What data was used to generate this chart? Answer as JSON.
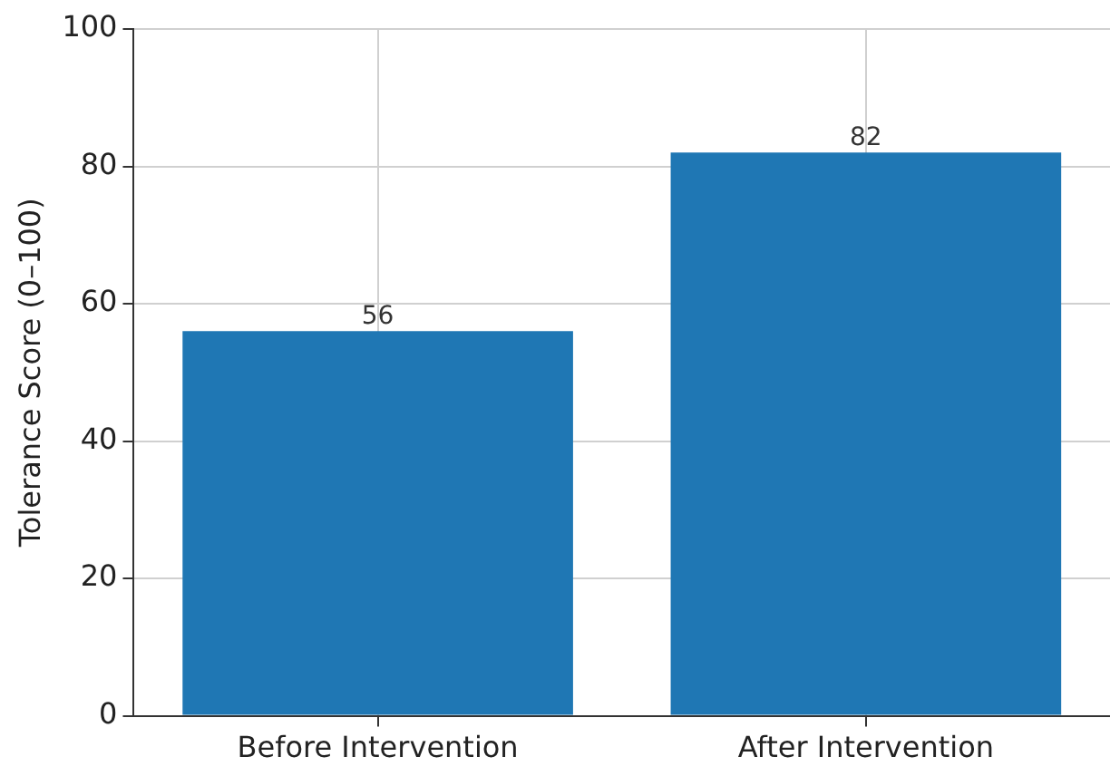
{
  "chart_data": {
    "type": "bar",
    "ylabel": "Tolerance Score (0–100)",
    "categories": [
      "Before Intervention",
      "After Intervention"
    ],
    "values": [
      56,
      82
    ],
    "color": "#1f77b4",
    "ylim": [
      0,
      100
    ],
    "yticks": [
      0,
      20,
      40,
      60,
      80,
      100
    ],
    "grid": true,
    "data_labels": true
  }
}
